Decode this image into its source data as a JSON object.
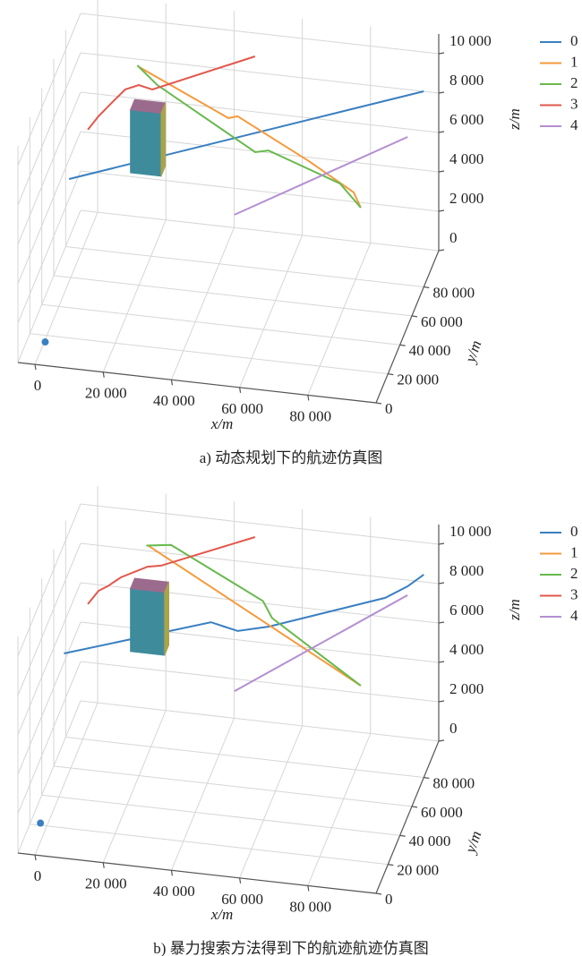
{
  "chart_data": [
    {
      "type": "line3d",
      "caption": "a) 动态规划下的航迹仿真图",
      "x_label": "x/m",
      "y_label": "y/m",
      "z_label": "z/m",
      "xlim": [
        -5000,
        100000
      ],
      "ylim": [
        0,
        105000
      ],
      "zlim": [
        0,
        11000
      ],
      "xticks": [
        0,
        {
          "value": 20000,
          "label": "20 000"
        },
        {
          "value": 40000,
          "label": "40 000"
        },
        {
          "value": 60000,
          "label": "60 000"
        },
        {
          "value": 80000,
          "label": "80 000"
        }
      ],
      "yticks": [
        0,
        {
          "value": 20000,
          "label": "20 000"
        },
        {
          "value": 40000,
          "label": "40 000"
        },
        {
          "value": 60000,
          "label": "60 000"
        },
        {
          "value": 80000,
          "label": "80 000"
        }
      ],
      "zticks": [
        0,
        {
          "value": 2000,
          "label": "2 000"
        },
        {
          "value": 4000,
          "label": "4 000"
        },
        {
          "value": 6000,
          "label": "6 000"
        },
        {
          "value": 8000,
          "label": "8 000"
        },
        {
          "value": 10000,
          "label": "10 000"
        }
      ],
      "grid": true,
      "legend": "upper right",
      "series": [
        {
          "name": "0",
          "color": "#3a7fc1",
          "x": [
            6500,
            100000
          ],
          "y": [
            20000,
            80000
          ],
          "z": [
            8070,
            9930
          ]
        },
        {
          "name": "1",
          "color": "#f59a3c",
          "x": [
            16800,
            47100,
            50200,
            74400,
            89600,
            92000
          ],
          "y": [
            78560,
            55000,
            52600,
            33700,
            21900,
            20000
          ],
          "z": [
            9650,
            9380,
            9710,
            9300,
            8870,
            8280
          ]
        },
        {
          "name": "2",
          "color": "#68b94d",
          "x": [
            16200,
            22900,
            56200,
            60700,
            85000,
            92000
          ],
          "y": [
            79000,
            73900,
            47900,
            44300,
            25400,
            20000
          ],
          "z": [
            9690,
            9200,
            8350,
            8790,
            8970,
            8280
          ]
        },
        {
          "name": "3",
          "color": "#e2574c",
          "x": [
            5000,
            7700,
            11000,
            14400,
            17800,
            21200,
            47000
          ],
          "y": [
            60000,
            62600,
            65800,
            69000,
            72200,
            75400,
            100000
          ],
          "z": [
            7600,
            8150,
            8660,
            9170,
            9220,
            8830,
            9200
          ]
        },
        {
          "name": "4",
          "color": "#b48fd1",
          "x": [
            55000,
            97000
          ],
          "y": [
            20000,
            70000
          ],
          "z": [
            7200,
            8290
          ]
        }
      ],
      "start_point": {
        "x": 3000,
        "y": 0,
        "z": 1200,
        "color": "#3a7fc1"
      },
      "obstacle": {
        "x": [
          21000,
          30000
        ],
        "y": [
          40000,
          47000
        ],
        "z": [
          7200,
          10400
        ],
        "colors": [
          "#3e8b9c",
          "#9b6b8d",
          "#a9a34a"
        ]
      }
    },
    {
      "type": "line3d",
      "caption": "b) 暴力搜索方法得到下的航迹航迹仿真图",
      "x_label": "x/m",
      "y_label": "y/m",
      "z_label": "z/m",
      "xlim": [
        -5000,
        100000
      ],
      "ylim": [
        0,
        105000
      ],
      "zlim": [
        0,
        11000
      ],
      "xticks": [
        0,
        {
          "value": 20000,
          "label": "20 000"
        },
        {
          "value": 40000,
          "label": "40 000"
        },
        {
          "value": 60000,
          "label": "60 000"
        },
        {
          "value": 80000,
          "label": "80 000"
        }
      ],
      "yticks": [
        0,
        {
          "value": 20000,
          "label": "20 000"
        },
        {
          "value": 40000,
          "label": "40 000"
        },
        {
          "value": 60000,
          "label": "60 000"
        },
        {
          "value": 80000,
          "label": "80 000"
        }
      ],
      "zticks": [
        0,
        {
          "value": 2000,
          "label": "2 000"
        },
        {
          "value": 4000,
          "label": "4 000"
        },
        {
          "value": 6000,
          "label": "6 000"
        },
        {
          "value": 8000,
          "label": "8 000"
        },
        {
          "value": 10000,
          "label": "10 000"
        }
      ],
      "grid": true,
      "legend": "upper right",
      "series": [
        {
          "name": "0",
          "color": "#3a7fc1",
          "x": [
            5000,
            43800,
            47300,
            50900,
            59100,
            89800,
            95700,
            100000
          ],
          "y": [
            20000,
            44500,
            46700,
            49000,
            54200,
            73600,
            77300,
            80000
          ],
          "z": [
            8860,
            9400,
            9080,
            8760,
            8760,
            9390,
            9820,
            10300
          ]
        },
        {
          "name": "1",
          "color": "#f59a3c",
          "x": [
            17800,
            92000
          ],
          "y": [
            87800,
            20000
          ],
          "z": [
            9600,
            8920
          ]
        },
        {
          "name": "2",
          "color": "#68b94d",
          "x": [
            17200,
            25600,
            56800,
            59900,
            92000
          ],
          "y": [
            88300,
            81700,
            57400,
            55000,
            20000
          ],
          "z": [
            9550,
            10230,
            9780,
            9150,
            8920
          ]
        },
        {
          "name": "3",
          "color": "#e2574c",
          "x": [
            5000,
            7700,
            10000,
            13300,
            20000,
            23400,
            47000
          ],
          "y": [
            60000,
            62600,
            64700,
            67900,
            74300,
            77600,
            100000
          ],
          "z": [
            8420,
            8960,
            9080,
            9360,
            9560,
            9440,
            9700
          ]
        },
        {
          "name": "4",
          "color": "#b48fd1",
          "x": [
            55000,
            97000
          ],
          "y": [
            20000,
            70000
          ],
          "z": [
            7920,
            9930
          ]
        }
      ],
      "start_point": {
        "x": 1600,
        "y": 0,
        "z": 1650,
        "color": "#3a7fc1"
      },
      "obstacle": {
        "x": [
          21000,
          31000
        ],
        "y": [
          40000,
          47000
        ],
        "z": [
          7800,
          11000
        ],
        "colors": [
          "#3e8b9c",
          "#9b6b8d",
          "#a9a34a"
        ]
      }
    }
  ]
}
